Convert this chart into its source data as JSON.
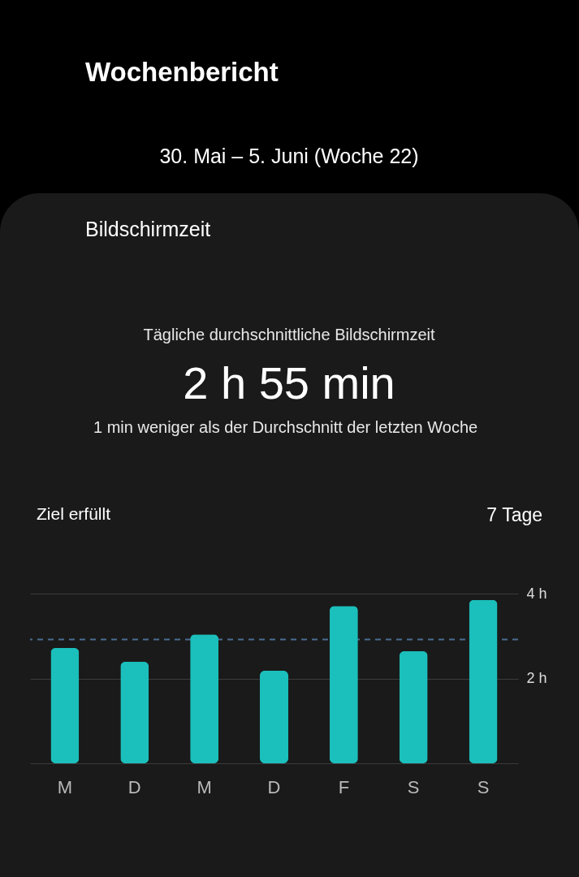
{
  "chart_data": {
    "type": "bar",
    "title": "Wochenbericht",
    "subtitle": "30. Mai – 5. Juni (Woche 22)",
    "annotations": [
      "Bildschirmzeit",
      "Tägliche durchschnittliche Bildschirmzeit",
      "2 h 55 min",
      "1 min weniger als der Durchschnitt der letzten Woche",
      "Ziel erfüllt",
      "7 Tage"
    ],
    "categories": [
      "M",
      "D",
      "M",
      "D",
      "F",
      "S",
      "S"
    ],
    "values": [
      2.72,
      2.39,
      3.04,
      2.18,
      3.71,
      2.64,
      3.85
    ],
    "color": "#1bbfbb",
    "ylim": [
      0,
      4
    ],
    "yticks": [
      {
        "value": 0,
        "label": null
      },
      {
        "value": 2,
        "label": "2 h"
      },
      {
        "value": 4,
        "label": "4 h"
      }
    ],
    "ref_lines": [
      {
        "axis": "y",
        "value": 2.92,
        "color": "#4a6d91",
        "line_style": "dashed"
      }
    ],
    "grid": "y"
  }
}
